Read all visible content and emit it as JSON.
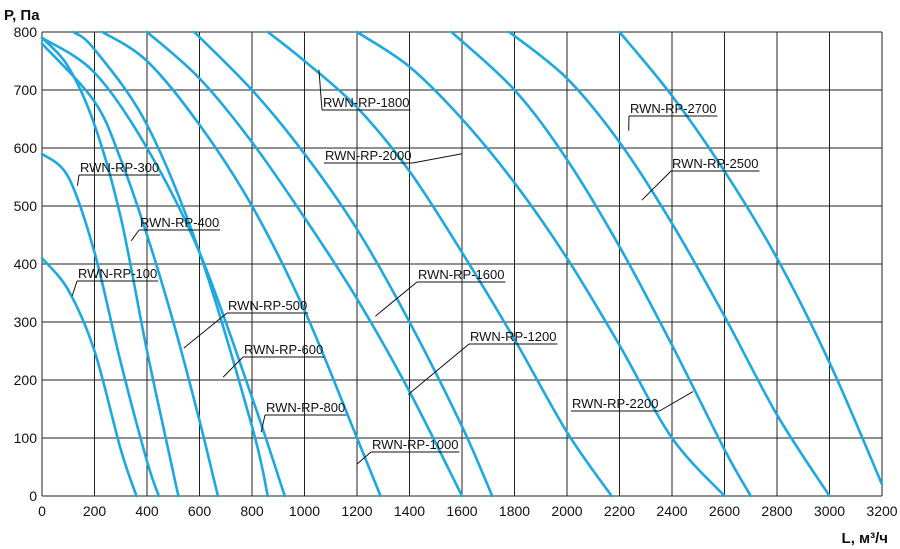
{
  "chart_data": {
    "type": "line",
    "xlabel": "L, м³/ч",
    "ylabel": "P, Па",
    "xlim": [
      0,
      3200
    ],
    "ylim": [
      0,
      800
    ],
    "grid": true,
    "x_ticks": [
      0,
      200,
      400,
      600,
      800,
      1000,
      1200,
      1400,
      1600,
      1800,
      2000,
      2200,
      2400,
      2600,
      2800,
      3000,
      3200
    ],
    "y_ticks": [
      0,
      100,
      200,
      300,
      400,
      500,
      600,
      700,
      800
    ],
    "line_color": "#1ca8e0",
    "series": [
      {
        "name": "RWN-RP-100",
        "x": [
          0,
          100,
          200,
          300,
          360
        ],
        "y": [
          410,
          355,
          250,
          80,
          0
        ]
      },
      {
        "name": "RWN-RP-300",
        "x": [
          0,
          100,
          200,
          300,
          400,
          445
        ],
        "y": [
          590,
          550,
          420,
          230,
          60,
          0
        ]
      },
      {
        "name": "RWN-RP-400",
        "x": [
          0,
          100,
          200,
          300,
          400,
          500,
          520
        ],
        "y": [
          790,
          740,
          640,
          480,
          250,
          40,
          0
        ]
      },
      {
        "name": "RWN-RP-500",
        "x": [
          0,
          200,
          300,
          400,
          500,
          600,
          670
        ],
        "y": [
          780,
          680,
          580,
          450,
          300,
          130,
          0
        ]
      },
      {
        "name": "RWN-RP-600",
        "x": [
          120,
          200,
          400,
          600,
          800,
          860
        ],
        "y": [
          800,
          770,
          640,
          420,
          120,
          0
        ]
      },
      {
        "name": "RWN-RP-800",
        "x": [
          0,
          200,
          400,
          600,
          800,
          925
        ],
        "y": [
          790,
          730,
          600,
          420,
          170,
          0
        ]
      },
      {
        "name": "RWN-RP-1000",
        "x": [
          230,
          400,
          600,
          800,
          1000,
          1200,
          1290
        ],
        "y": [
          800,
          750,
          640,
          500,
          320,
          100,
          0
        ]
      },
      {
        "name": "RWN-RP-1200",
        "x": [
          400,
          600,
          800,
          1000,
          1200,
          1400,
          1600
        ],
        "y": [
          800,
          720,
          610,
          480,
          340,
          180,
          0
        ]
      },
      {
        "name": "RWN-RP-1600",
        "x": [
          580,
          800,
          1000,
          1200,
          1400,
          1600,
          1715
        ],
        "y": [
          800,
          700,
          590,
          460,
          300,
          120,
          0
        ]
      },
      {
        "name": "RWN-RP-1800",
        "x": [
          860,
          1000,
          1200,
          1400,
          1600,
          1800,
          2000,
          2170
        ],
        "y": [
          800,
          750,
          670,
          560,
          420,
          270,
          110,
          0
        ]
      },
      {
        "name": "RWN-RP-2000",
        "x": [
          1200,
          1400,
          1600,
          1800,
          2000,
          2200,
          2400,
          2600
        ],
        "y": [
          800,
          740,
          650,
          540,
          410,
          260,
          100,
          0
        ]
      },
      {
        "name": "RWN-RP-2200",
        "x": [
          1560,
          1800,
          2000,
          2200,
          2400,
          2600,
          2700
        ],
        "y": [
          800,
          700,
          580,
          430,
          260,
          80,
          0
        ]
      },
      {
        "name": "RWN-RP-2500",
        "x": [
          1780,
          2000,
          2200,
          2400,
          2600,
          2800,
          3000
        ],
        "y": [
          800,
          720,
          610,
          470,
          310,
          140,
          0
        ]
      },
      {
        "name": "RWN-RP-2700",
        "x": [
          2200,
          2400,
          2600,
          2800,
          3000,
          3200
        ],
        "y": [
          800,
          690,
          560,
          410,
          230,
          20
        ]
      }
    ],
    "labels": [
      {
        "text": "RWN-RP-100",
        "attach_x": 115,
        "attach_y": 345
      },
      {
        "text": "RWN-RP-300",
        "attach_x": 135,
        "attach_y": 535
      },
      {
        "text": "RWN-RP-400",
        "attach_x": 340,
        "attach_y": 440
      },
      {
        "text": "RWN-RP-500",
        "attach_x": 540,
        "attach_y": 255
      },
      {
        "text": "RWN-RP-600",
        "attach_x": 690,
        "attach_y": 205
      },
      {
        "text": "RWN-RP-800",
        "attach_x": 835,
        "attach_y": 110
      },
      {
        "text": "RWN-RP-1000",
        "attach_x": 1200,
        "attach_y": 55
      },
      {
        "text": "RWN-RP-1200",
        "attach_x": 1395,
        "attach_y": 175
      },
      {
        "text": "RWN-RP-1600",
        "attach_x": 1270,
        "attach_y": 310
      },
      {
        "text": "RWN-RP-1800",
        "attach_x": 1055,
        "attach_y": 735
      },
      {
        "text": "RWN-RP-2000",
        "attach_x": 1600,
        "attach_y": 590
      },
      {
        "text": "RWN-RP-2200",
        "attach_x": 2480,
        "attach_y": 180
      },
      {
        "text": "RWN-RP-2500",
        "attach_x": 2285,
        "attach_y": 510
      },
      {
        "text": "RWN-RP-2700",
        "attach_x": 2235,
        "attach_y": 630
      }
    ]
  }
}
